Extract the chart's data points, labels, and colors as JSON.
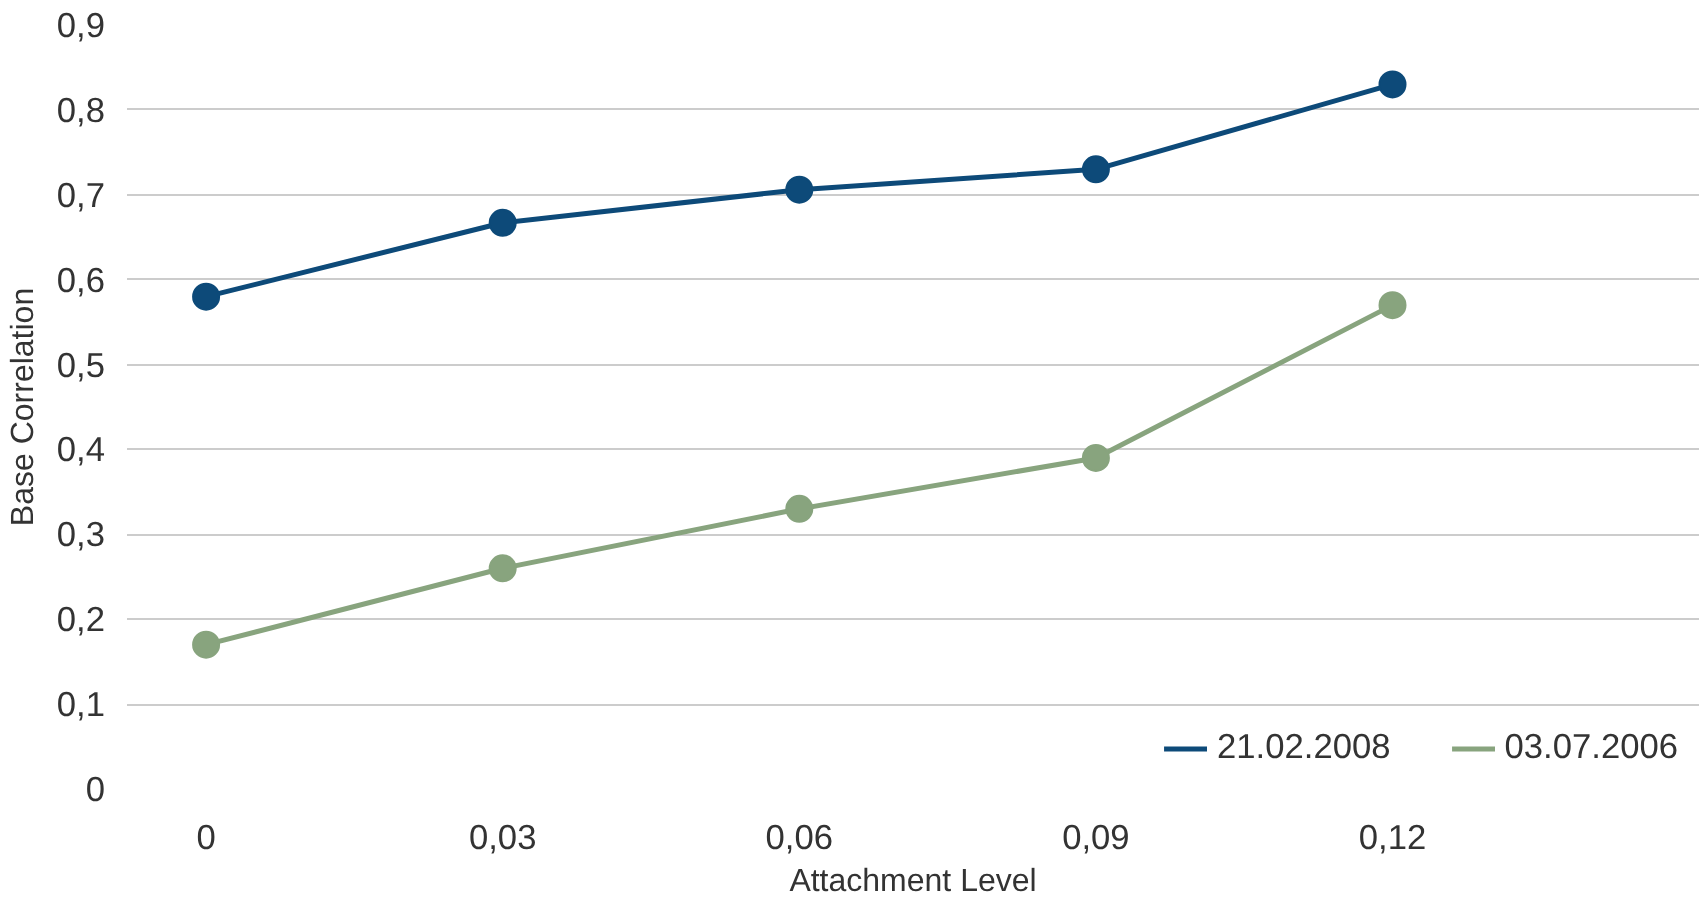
{
  "chart_data": {
    "type": "line",
    "xlabel": "Attachment Level",
    "ylabel": "Base Correlation",
    "x": [
      0,
      0.03,
      0.06,
      0.09,
      0.12
    ],
    "series": [
      {
        "name": "21.02.2008",
        "color": "#0d4a79",
        "values": [
          0.58,
          0.667,
          0.706,
          0.73,
          0.83
        ]
      },
      {
        "name": "03.07.2006",
        "color": "#88a47e",
        "values": [
          0.17,
          0.26,
          0.33,
          0.39,
          0.57
        ]
      }
    ],
    "xlim": [
      -0.008,
      0.151
    ],
    "xticks": [
      {
        "value": 0,
        "label": "0"
      },
      {
        "value": 0.03,
        "label": "0,03"
      },
      {
        "value": 0.06,
        "label": "0,06"
      },
      {
        "value": 0.09,
        "label": "0,09"
      },
      {
        "value": 0.12,
        "label": "0,12"
      }
    ],
    "ylim": [
      0,
      0.9
    ],
    "yticks": [
      {
        "value": 0,
        "label": "0"
      },
      {
        "value": 0.1,
        "label": "0,1"
      },
      {
        "value": 0.2,
        "label": "0,2"
      },
      {
        "value": 0.3,
        "label": "0,3"
      },
      {
        "value": 0.4,
        "label": "0,4"
      },
      {
        "value": 0.5,
        "label": "0,5"
      },
      {
        "value": 0.6,
        "label": "0,6"
      },
      {
        "value": 0.7,
        "label": "0,7"
      },
      {
        "value": 0.8,
        "label": "0,8"
      },
      {
        "value": 0.9,
        "label": "0,9"
      }
    ],
    "grid": "y",
    "legend": "bottom right",
    "marker": "circle",
    "line_style": "solid"
  }
}
